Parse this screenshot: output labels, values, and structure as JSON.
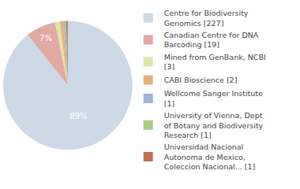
{
  "chart_data": {
    "type": "pie",
    "categories": [
      "Centre for Biodiversity Genomics [227]",
      "Canadian Centre for DNA Barcoding [19]",
      "Mined from GenBank, NCBI [3]",
      "CABI Bioscience [2]",
      "Wellcome Sanger Institute [1]",
      "University of Vienna, Dept of Botany and Biodiversity Research [1]",
      "Universidad Nacional Autonoma de Mexico, Coleccion Nacional... [1]"
    ],
    "values": [
      89.37,
      7.48,
      1.18,
      0.79,
      0.39,
      0.39,
      0.39
    ],
    "value_labels": [
      "89%",
      "7%",
      null,
      null,
      null,
      null,
      null
    ],
    "data_labels": true,
    "colors": [
      "#cdd9e6",
      "#e0a9a4",
      "#dce7a6",
      "#e8b07c",
      "#9fb3d4",
      "#a3cc85",
      "#c46f52"
    ],
    "legend": "right"
  }
}
